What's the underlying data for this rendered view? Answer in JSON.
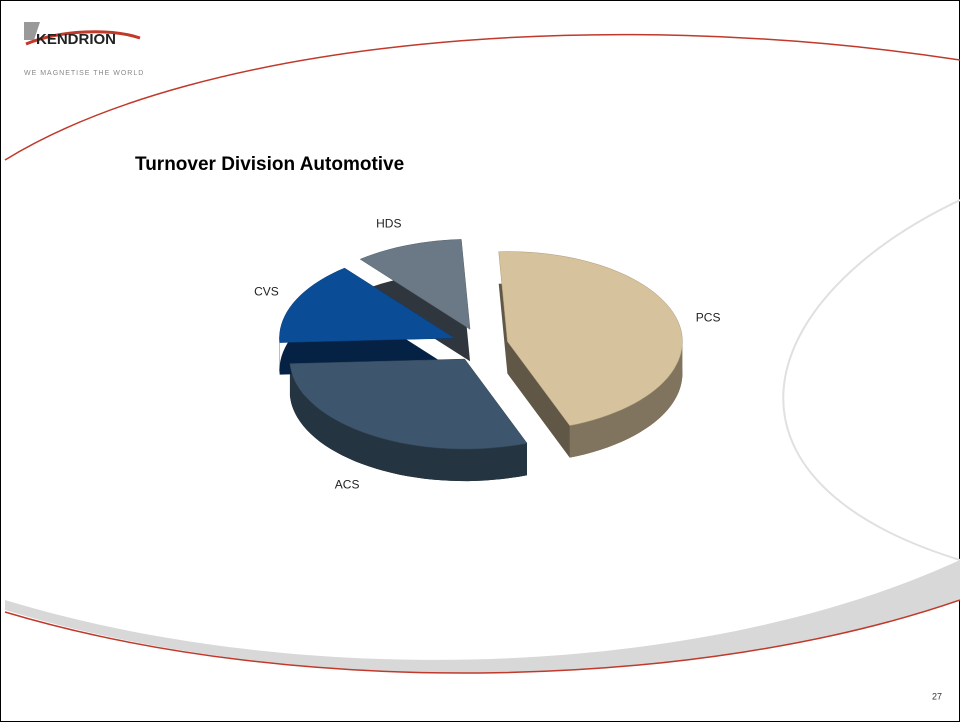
{
  "logo": {
    "name": "KENDRION",
    "tagline": "WE MAGNETISE THE WORLD"
  },
  "page_number": "27",
  "chart_data": {
    "type": "pie",
    "title": "Turnover Division Automotive",
    "categories": [
      "PCS",
      "ACS",
      "CVS",
      "HDS"
    ],
    "values": [
      45,
      30,
      15,
      10
    ],
    "colors": [
      "#d6c29c",
      "#3d566d",
      "#0b4c97",
      "#6b7987"
    ]
  }
}
